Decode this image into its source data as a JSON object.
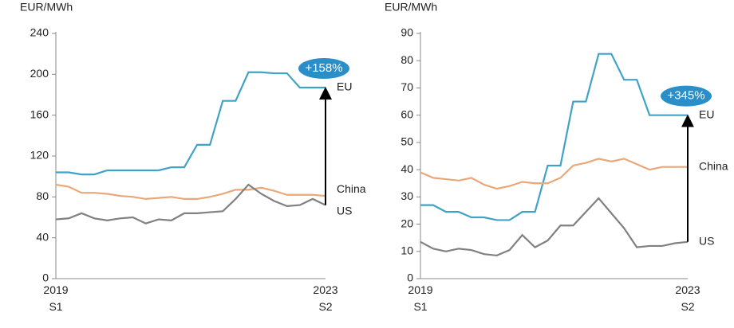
{
  "chart_data": [
    {
      "type": "line",
      "y_label": "EUR/MWh",
      "categories": [
        "2019\nS1",
        null,
        null,
        null,
        null,
        null,
        null,
        null,
        null,
        null,
        null,
        null,
        null,
        null,
        null,
        null,
        null,
        null,
        null,
        null,
        null,
        "2023\nS2"
      ],
      "ylim": [
        0,
        240
      ],
      "yticks": [
        0,
        40,
        80,
        120,
        160,
        200,
        240
      ],
      "annotation": "+158%",
      "series": [
        {
          "name": "EU",
          "color": "#40a3c6",
          "values": [
            104,
            104,
            102,
            102,
            106,
            106,
            106,
            106,
            106,
            109,
            109,
            131,
            131,
            174,
            174,
            202,
            202,
            201,
            201,
            187,
            187,
            187
          ]
        },
        {
          "name": "China",
          "color": "#e8a87a",
          "values": [
            92,
            90,
            84,
            84,
            83,
            81,
            80,
            78,
            79,
            80,
            78,
            78,
            80,
            83,
            87,
            87,
            89,
            86,
            82,
            82,
            82,
            81
          ]
        },
        {
          "name": "US",
          "color": "#808080",
          "values": [
            58,
            59,
            64,
            59,
            57,
            59,
            60,
            54,
            58,
            57,
            64,
            64,
            65,
            66,
            78,
            92,
            83,
            76,
            71,
            72,
            78,
            72
          ]
        }
      ]
    },
    {
      "type": "line",
      "y_label": "EUR/MWh",
      "categories": [
        "2019\nS1",
        null,
        null,
        null,
        null,
        null,
        null,
        null,
        null,
        null,
        null,
        null,
        null,
        null,
        null,
        null,
        null,
        null,
        null,
        null,
        null,
        "2023\nS2"
      ],
      "ylim": [
        0,
        90
      ],
      "yticks": [
        0,
        10,
        20,
        30,
        40,
        50,
        60,
        70,
        80,
        90
      ],
      "annotation": "+345%",
      "series": [
        {
          "name": "EU",
          "color": "#40a3c6",
          "values": [
            27,
            27,
            24.5,
            24.5,
            22.5,
            22.5,
            21.5,
            21.5,
            24.5,
            24.5,
            41.5,
            41.5,
            65,
            65,
            82.5,
            82.5,
            73,
            73,
            60,
            60,
            60,
            60
          ]
        },
        {
          "name": "China",
          "color": "#e8a87a",
          "values": [
            39,
            37,
            36.5,
            36,
            37,
            34.5,
            33,
            34,
            35.5,
            35,
            35,
            37,
            41.5,
            42.5,
            44,
            43,
            44,
            42,
            40,
            41,
            41,
            41
          ]
        },
        {
          "name": "US",
          "color": "#808080",
          "values": [
            13.5,
            11,
            10,
            11,
            10.5,
            9,
            8.5,
            10.5,
            16,
            11.5,
            14,
            19.5,
            19.5,
            24.5,
            29.5,
            24,
            18.5,
            11.5,
            12,
            12,
            13,
            13.5
          ]
        }
      ]
    }
  ]
}
